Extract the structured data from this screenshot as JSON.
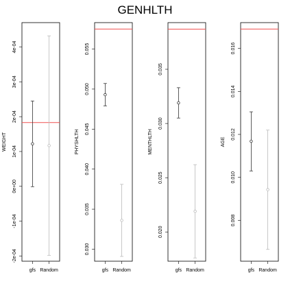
{
  "chart_data": {
    "title": "GENHLTH",
    "type": "errorbar-panels",
    "colors": {
      "frame": "#000000",
      "reference_line": "#f05050",
      "gfs": "#333333",
      "random": "#bbbbbb"
    },
    "panels": [
      {
        "ylabel": "WEIGHT",
        "ylim": [
          -0.000215,
          0.00047
        ],
        "ticks": [
          {
            "value": -0.0002,
            "label": "-2e-04"
          },
          {
            "value": -0.0001,
            "label": "-1e-04"
          },
          {
            "value": 0,
            "label": "0e+00"
          },
          {
            "value": 0.0001,
            "label": "1e-04"
          },
          {
            "value": 0.0002,
            "label": "2e-04"
          },
          {
            "value": 0.0003,
            "label": "3e-04"
          },
          {
            "value": 0.0004,
            "label": "4e-04"
          }
        ],
        "categories": [
          "gfs",
          "Random"
        ],
        "points": [
          {
            "name": "gfs",
            "mean": 0.000122,
            "lower": -1e-06,
            "upper": 0.000245
          },
          {
            "name": "Random",
            "mean": 0.000117,
            "lower": -0.000198,
            "upper": 0.000432
          }
        ],
        "reference": 0.000183
      },
      {
        "ylabel": "PHYSHLTH",
        "ylim": [
          0.0285,
          0.0583
        ],
        "ticks": [
          {
            "value": 0.03,
            "label": "0.030"
          },
          {
            "value": 0.035,
            "label": "0.035"
          },
          {
            "value": 0.04,
            "label": "0.040"
          },
          {
            "value": 0.045,
            "label": "0.045"
          },
          {
            "value": 0.05,
            "label": "0.050"
          },
          {
            "value": 0.055,
            "label": "0.055"
          }
        ],
        "categories": [
          "gfs",
          "Random"
        ],
        "points": [
          {
            "name": "gfs",
            "mean": 0.0493,
            "lower": 0.0479,
            "upper": 0.0507
          },
          {
            "name": "Random",
            "mean": 0.0336,
            "lower": 0.0291,
            "upper": 0.0381
          }
        ],
        "reference": 0.0575
      },
      {
        "ylabel": "MENTHLTH",
        "ylim": [
          0.0173,
          0.0393
        ],
        "ticks": [
          {
            "value": 0.02,
            "label": "0.020"
          },
          {
            "value": 0.025,
            "label": "0.025"
          },
          {
            "value": 0.03,
            "label": "0.030"
          },
          {
            "value": 0.035,
            "label": "0.035"
          }
        ],
        "categories": [
          "gfs",
          "Random"
        ],
        "points": [
          {
            "name": "gfs",
            "mean": 0.0319,
            "lower": 0.0305,
            "upper": 0.0333
          },
          {
            "name": "Random",
            "mean": 0.0219,
            "lower": 0.0176,
            "upper": 0.0262
          }
        ],
        "reference": 0.0387
      },
      {
        "ylabel": "AGE",
        "ylim": [
          0.0061,
          0.0172
        ],
        "ticks": [
          {
            "value": 0.008,
            "label": "0.008"
          },
          {
            "value": 0.01,
            "label": "0.010"
          },
          {
            "value": 0.012,
            "label": "0.012"
          },
          {
            "value": 0.014,
            "label": "0.014"
          },
          {
            "value": 0.016,
            "label": "0.016"
          }
        ],
        "categories": [
          "gfs",
          "Random"
        ],
        "points": [
          {
            "name": "gfs",
            "mean": 0.01168,
            "lower": 0.0103,
            "upper": 0.01305
          },
          {
            "name": "Random",
            "mean": 0.00943,
            "lower": 0.00665,
            "upper": 0.0122
          }
        ],
        "reference": 0.0169
      }
    ]
  }
}
